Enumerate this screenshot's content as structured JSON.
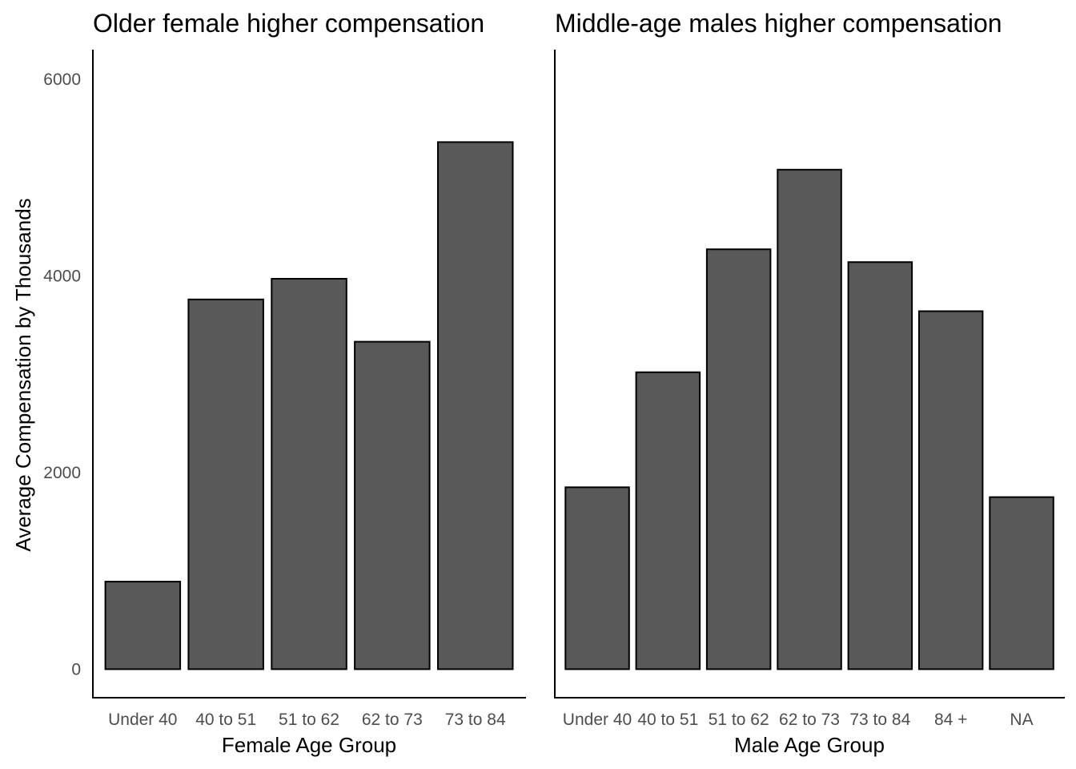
{
  "chart_data": [
    {
      "type": "bar",
      "title": "Older female higher compensation",
      "xlabel": "Female Age Group",
      "ylabel": "Average Compensation by Thousands",
      "categories": [
        "Under 40",
        "40 to 51",
        "51 to 62",
        "62 to 73",
        "73 to 84"
      ],
      "values": [
        890,
        3760,
        3970,
        3330,
        5360
      ],
      "y_ticks": [
        "0",
        "2000",
        "4000",
        "6000"
      ],
      "ylim": [
        -290,
        6300
      ],
      "bar_color": "#595959",
      "grid": false
    },
    {
      "type": "bar",
      "title": "Middle-age males higher compensation",
      "xlabel": "Male Age Group",
      "categories": [
        "Under 40",
        "40 to 51",
        "51 to 62",
        "62 to 73",
        "73 to 84",
        "84 +",
        "NA"
      ],
      "values": [
        1850,
        3020,
        4270,
        5080,
        4140,
        3640,
        1750
      ],
      "ylim": [
        -290,
        6300
      ],
      "bar_color": "#595959",
      "grid": false
    }
  ]
}
